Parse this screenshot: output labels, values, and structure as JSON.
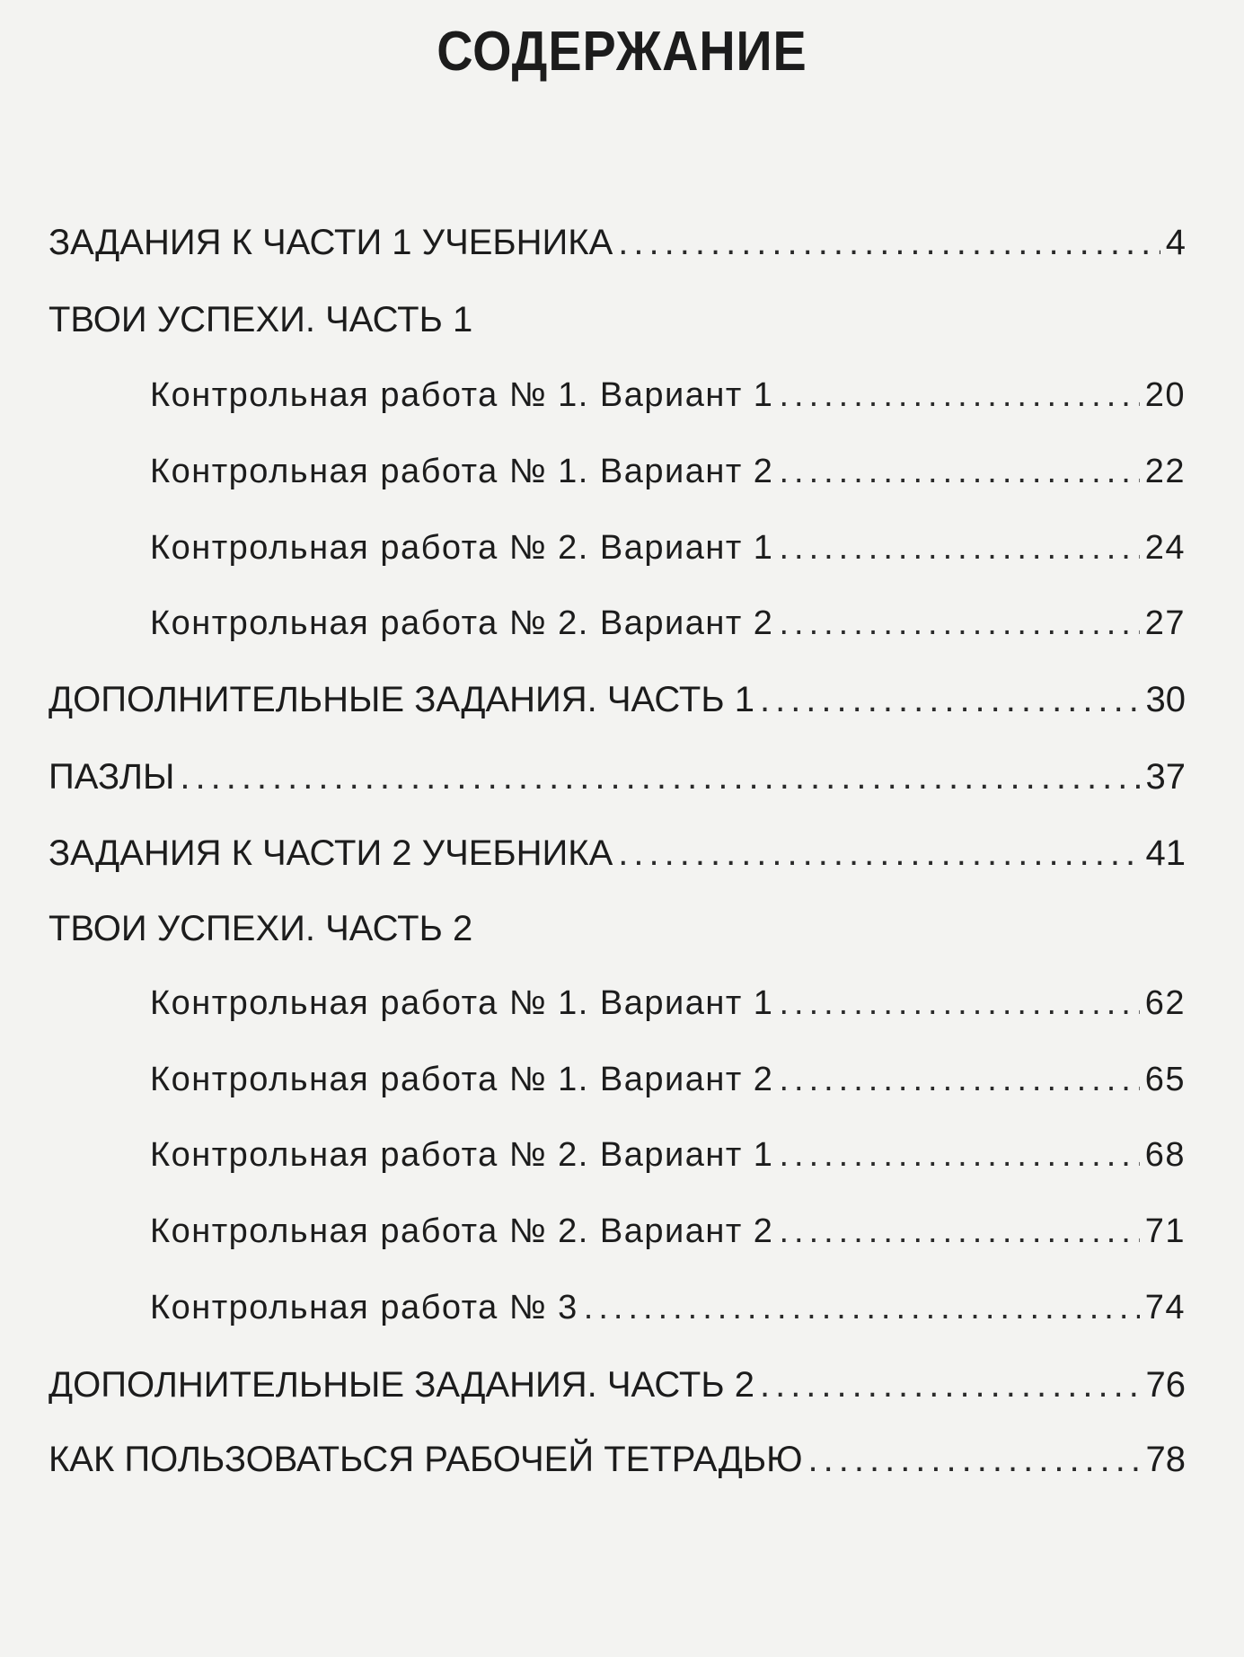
{
  "title": "СОДЕРЖАНИЕ",
  "entries": [
    {
      "label": "ЗАДАНИЯ К ЧАСТИ 1 УЧЕБНИКА",
      "page": "4",
      "level": "main"
    },
    {
      "label": "ТВОИ УСПЕХИ. ЧАСТЬ 1",
      "page": "",
      "level": "main"
    },
    {
      "label": "Контрольная работа № 1. Вариант 1",
      "page": "20",
      "level": "sub"
    },
    {
      "label": "Контрольная работа № 1. Вариант 2",
      "page": "22",
      "level": "sub"
    },
    {
      "label": "Контрольная работа № 2. Вариант 1",
      "page": "24",
      "level": "sub"
    },
    {
      "label": "Контрольная работа № 2. Вариант 2",
      "page": "27",
      "level": "sub"
    },
    {
      "label": "ДОПОЛНИТЕЛЬНЫЕ ЗАДАНИЯ. ЧАСТЬ 1",
      "page": "30",
      "level": "main"
    },
    {
      "label": "ПАЗЛЫ",
      "page": "37",
      "level": "main"
    },
    {
      "label": "ЗАДАНИЯ К ЧАСТИ 2 УЧЕБНИКА",
      "page": "41",
      "level": "main"
    },
    {
      "label": "ТВОИ УСПЕХИ. ЧАСТЬ 2",
      "page": "",
      "level": "main"
    },
    {
      "label": "Контрольная работа № 1. Вариант 1",
      "page": "62",
      "level": "sub"
    },
    {
      "label": "Контрольная работа № 1. Вариант 2",
      "page": "65",
      "level": "sub"
    },
    {
      "label": "Контрольная работа № 2. Вариант 1",
      "page": "68",
      "level": "sub"
    },
    {
      "label": "Контрольная работа № 2. Вариант 2",
      "page": "71",
      "level": "sub"
    },
    {
      "label": "Контрольная работа № 3",
      "page": "74",
      "level": "sub"
    },
    {
      "label": "ДОПОЛНИТЕЛЬНЫЕ ЗАДАНИЯ. ЧАСТЬ 2",
      "page": "76",
      "level": "main"
    },
    {
      "label": "КАК ПОЛЬЗОВАТЬСЯ РАБОЧЕЙ ТЕТРАДЬЮ",
      "page": "78",
      "level": "main"
    }
  ]
}
